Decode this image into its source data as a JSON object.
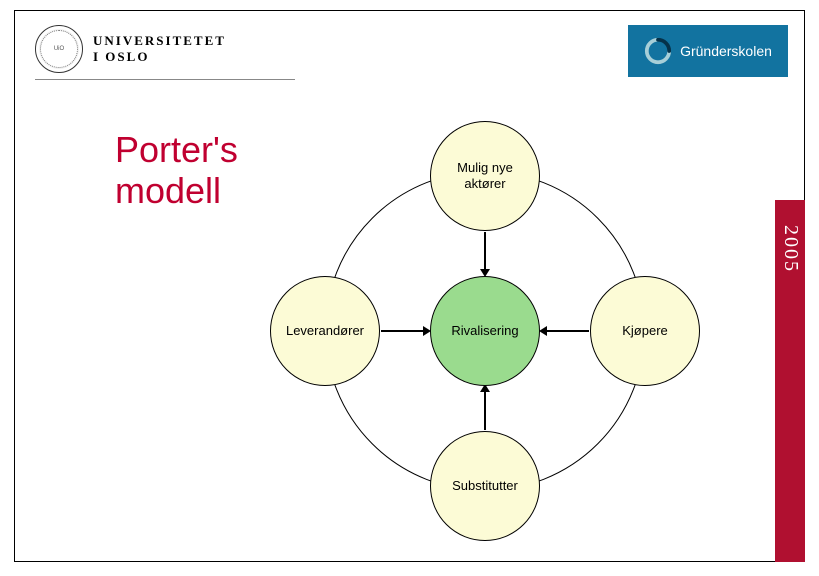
{
  "header": {
    "university_line1": "UNIVERSITETET",
    "university_line2": "I OSLO",
    "badge_label": "Gründerskolen",
    "badge_bg": "#1273a0",
    "badge_text_color": "#ffffff"
  },
  "title": {
    "line1": "Porter's",
    "line2": "modell",
    "color": "#c00030",
    "fontsize": 36
  },
  "sidebar": {
    "year": "2005",
    "color": "#b01030"
  },
  "diagram": {
    "type": "network",
    "orbit_diameter": 320,
    "node_diameter": 110,
    "outer_fill": "#fcfbd6",
    "center_fill": "#9adb8e",
    "border_color": "#000000",
    "label_fontsize": 13,
    "nodes": {
      "top": {
        "label": "Mulig nye\naktører",
        "fill": "#fcfbd6"
      },
      "left": {
        "label": "Leverandører",
        "fill": "#fcfbd6"
      },
      "center": {
        "label": "Rivalisering",
        "fill": "#9adb8e"
      },
      "right": {
        "label": "Kjøpere",
        "fill": "#fcfbd6"
      },
      "bottom": {
        "label": "Substitutter",
        "fill": "#fcfbd6"
      }
    },
    "edges": [
      {
        "from": "top",
        "to": "center",
        "arrow": true
      },
      {
        "from": "left",
        "to": "center",
        "arrow": true
      },
      {
        "from": "right",
        "to": "center",
        "arrow": true
      },
      {
        "from": "bottom",
        "to": "center",
        "arrow": true
      }
    ]
  }
}
